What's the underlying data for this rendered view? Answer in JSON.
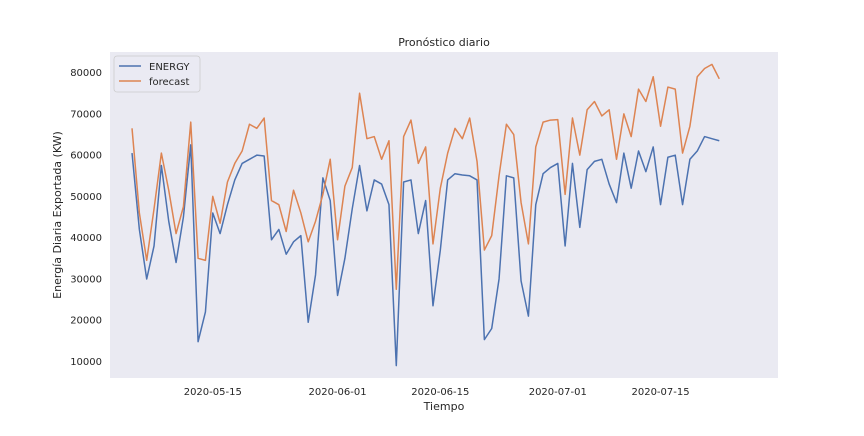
{
  "chart_data": {
    "type": "line",
    "title": "Pronóstico diario",
    "xlabel": "Tiempo",
    "ylabel": "Energía Diaria Exportada (KW)",
    "x_start": "2020-05-04",
    "x_step_days": 1,
    "xlim": [
      "2020-05-01",
      "2020-07-31"
    ],
    "ylim": [
      6000,
      85000
    ],
    "xticks": [
      "2020-05-15",
      "2020-06-01",
      "2020-06-15",
      "2020-07-01",
      "2020-07-15"
    ],
    "yticks": [
      10000,
      20000,
      30000,
      40000,
      50000,
      60000,
      70000,
      80000
    ],
    "grid": false,
    "legend": "top-left",
    "series": [
      {
        "name": "ENERGY",
        "color": "#4c72b0",
        "values": [
          60500,
          42000,
          30000,
          38000,
          57500,
          44000,
          34000,
          45000,
          62500,
          14800,
          22000,
          46000,
          41000,
          48000,
          54000,
          58000,
          59000,
          60000,
          59800,
          39500,
          42000,
          36000,
          39000,
          40500,
          19500,
          31000,
          54500,
          49000,
          26000,
          35000,
          47000,
          57500,
          46500,
          54000,
          53000,
          48000,
          9000,
          53500,
          54000,
          41000,
          49000,
          23500,
          37000,
          54000,
          55500,
          55200,
          55000,
          54000,
          15300,
          18000,
          30000,
          55000,
          54500,
          29500,
          21000,
          48000,
          55500,
          57000,
          58000,
          38000,
          58000,
          42500,
          56500,
          58500,
          59000,
          53000,
          48500,
          60500,
          52000,
          61000,
          56000,
          62000,
          48000,
          59500,
          60000,
          48000,
          59000,
          61000,
          64500,
          64000,
          63500
        ]
      },
      {
        "name": "forecast",
        "color": "#dd8452",
        "values": [
          66500,
          46000,
          34500,
          47000,
          60500,
          51500,
          41000,
          47500,
          68000,
          35000,
          34500,
          50000,
          43500,
          53500,
          58000,
          61000,
          67500,
          66500,
          69000,
          49000,
          48000,
          41500,
          51500,
          46000,
          39000,
          44000,
          50500,
          59000,
          39500,
          52500,
          57000,
          75000,
          64000,
          64500,
          59000,
          63500,
          27500,
          64500,
          68500,
          58000,
          62000,
          38500,
          52000,
          60500,
          66500,
          64000,
          69000,
          58500,
          37000,
          40500,
          55000,
          67500,
          65000,
          48500,
          38500,
          62000,
          68000,
          68500,
          68600,
          50500,
          69000,
          60000,
          71000,
          73000,
          69500,
          71000,
          59000,
          70000,
          64500,
          76000,
          73000,
          79000,
          67000,
          76500,
          76000,
          60500,
          67000,
          79000,
          81000,
          82000,
          78500
        ]
      }
    ]
  }
}
